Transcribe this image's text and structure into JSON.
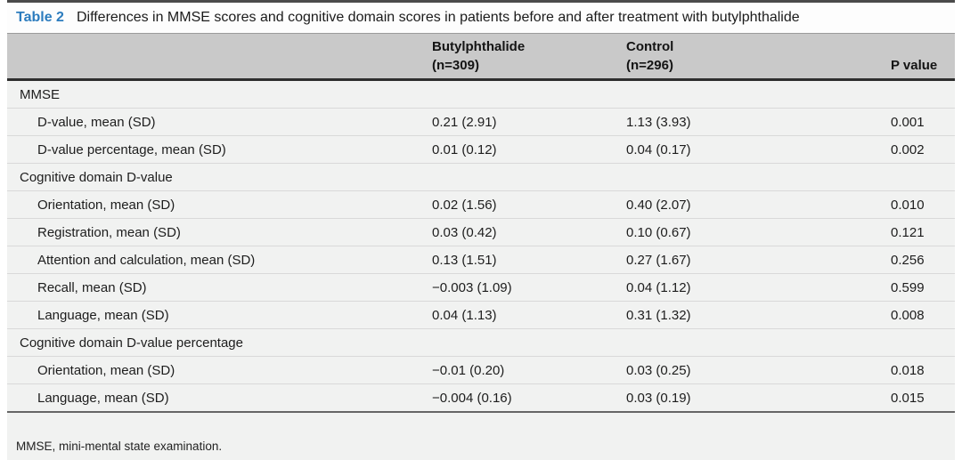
{
  "table": {
    "label": "Table 2",
    "caption": "Differences in MMSE scores and cognitive domain scores in patients before and after treatment with butylphthalide",
    "columns": [
      {
        "line1": "Butylphthalide",
        "line2": "(n=309)"
      },
      {
        "line1": "Control",
        "line2": "(n=296)"
      },
      {
        "line1": "",
        "line2": "P value"
      }
    ],
    "rows": [
      {
        "type": "section",
        "label": "MMSE",
        "butylphthalide": "",
        "control": "",
        "p": ""
      },
      {
        "type": "item",
        "label": "D-value, mean (SD)",
        "butylphthalide": "0.21 (2.91)",
        "control": "1.13 (3.93)",
        "p": "0.001"
      },
      {
        "type": "item",
        "label": "D-value percentage, mean (SD)",
        "butylphthalide": "0.01 (0.12)",
        "control": "0.04 (0.17)",
        "p": "0.002"
      },
      {
        "type": "section",
        "label": "Cognitive domain D-value",
        "butylphthalide": "",
        "control": "",
        "p": ""
      },
      {
        "type": "item",
        "label": "Orientation, mean (SD)",
        "butylphthalide": "0.02 (1.56)",
        "control": "0.40 (2.07)",
        "p": "0.010"
      },
      {
        "type": "item",
        "label": "Registration, mean (SD)",
        "butylphthalide": "0.03 (0.42)",
        "control": "0.10 (0.67)",
        "p": "0.121"
      },
      {
        "type": "item",
        "label": "Attention and calculation, mean (SD)",
        "butylphthalide": "0.13 (1.51)",
        "control": "0.27 (1.67)",
        "p": "0.256"
      },
      {
        "type": "item",
        "label": "Recall, mean (SD)",
        "butylphthalide": "−0.003 (1.09)",
        "control": "0.04 (1.12)",
        "p": "0.599"
      },
      {
        "type": "item",
        "label": "Language, mean (SD)",
        "butylphthalide": "0.04 (1.13)",
        "control": "0.31 (1.32)",
        "p": "0.008"
      },
      {
        "type": "section",
        "label": "Cognitive domain D-value percentage",
        "butylphthalide": "",
        "control": "",
        "p": ""
      },
      {
        "type": "item",
        "label": "Orientation, mean (SD)",
        "butylphthalide": "−0.01 (0.20)",
        "control": "0.03 (0.25)",
        "p": "0.018"
      },
      {
        "type": "item",
        "label": "Language, mean (SD)",
        "butylphthalide": "−0.004 (0.16)",
        "control": "0.03 (0.19)",
        "p": "0.015"
      }
    ],
    "footnote": "MMSE, mini-mental state examination.",
    "colors": {
      "title_blue": "#2c7cbe",
      "header_bg": "#c9c9c9",
      "row_bg": "#f1f2f1",
      "separator": "#d9d9d9",
      "dark_rule": "#2e2e2e",
      "top_rule": "#4a4a4a",
      "bottom_rule": "#ababab",
      "text": "#1d1d1d"
    }
  }
}
